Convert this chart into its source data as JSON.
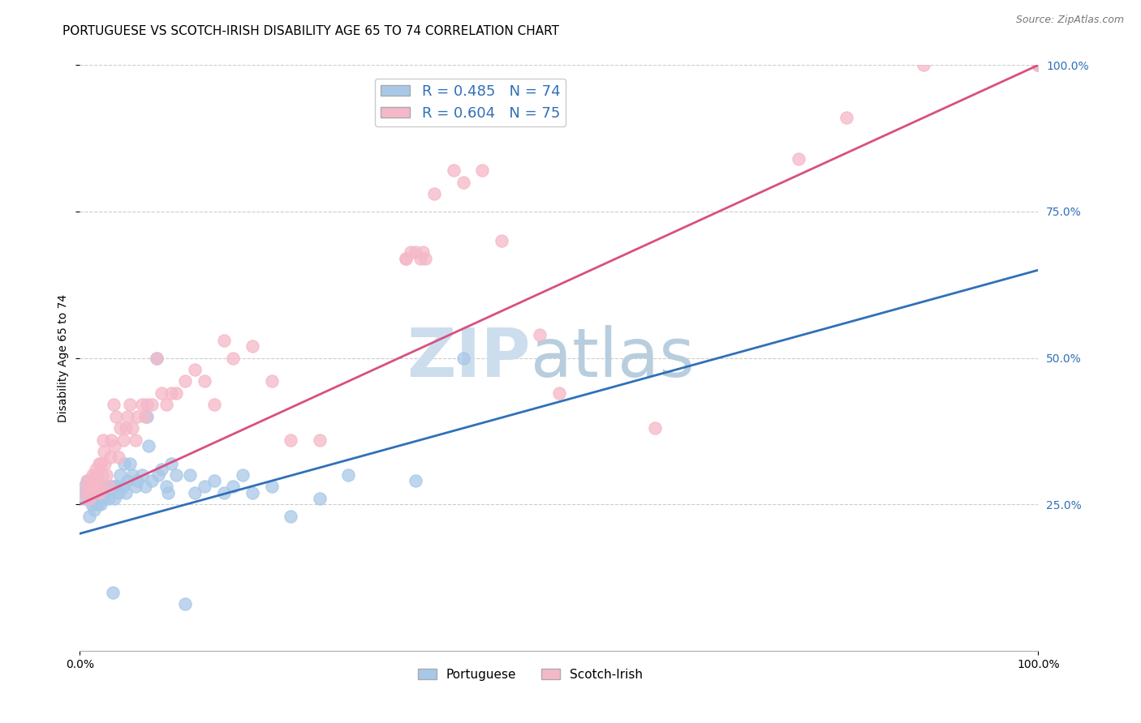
{
  "title": "PORTUGUESE VS SCOTCH-IRISH DISABILITY AGE 65 TO 74 CORRELATION CHART",
  "source": "Source: ZipAtlas.com",
  "ylabel": "Disability Age 65 to 74",
  "xlim": [
    0,
    1
  ],
  "ylim": [
    0,
    1
  ],
  "blue_color": "#a8c8e8",
  "pink_color": "#f5b8c8",
  "blue_line_color": "#3070b8",
  "pink_line_color": "#d85080",
  "blue_R": 0.485,
  "blue_N": 74,
  "pink_R": 0.604,
  "pink_N": 75,
  "blue_intercept": 0.2,
  "blue_slope": 0.45,
  "pink_intercept": 0.25,
  "pink_slope": 0.75,
  "background_color": "#ffffff",
  "grid_color": "#cccccc",
  "title_fontsize": 11,
  "axis_label_fontsize": 10,
  "tick_fontsize": 10,
  "legend_fontsize": 13,
  "watermark_fontsize": 60,
  "watermark_color_zip": "#ccdded",
  "watermark_color_atlas": "#b8cede",
  "blue_points_x": [
    0.005,
    0.005,
    0.007,
    0.008,
    0.01,
    0.01,
    0.01,
    0.012,
    0.012,
    0.013,
    0.015,
    0.015,
    0.015,
    0.016,
    0.017,
    0.018,
    0.018,
    0.019,
    0.02,
    0.02,
    0.021,
    0.022,
    0.022,
    0.023,
    0.024,
    0.025,
    0.025,
    0.026,
    0.028,
    0.03,
    0.03,
    0.032,
    0.034,
    0.035,
    0.036,
    0.038,
    0.04,
    0.042,
    0.045,
    0.046,
    0.048,
    0.05,
    0.052,
    0.055,
    0.058,
    0.06,
    0.065,
    0.068,
    0.07,
    0.072,
    0.075,
    0.08,
    0.082,
    0.085,
    0.09,
    0.092,
    0.095,
    0.1,
    0.11,
    0.115,
    0.12,
    0.13,
    0.14,
    0.15,
    0.16,
    0.17,
    0.18,
    0.2,
    0.22,
    0.25,
    0.28,
    0.35,
    0.4,
    1.0
  ],
  "blue_points_y": [
    0.26,
    0.28,
    0.27,
    0.29,
    0.23,
    0.26,
    0.28,
    0.25,
    0.27,
    0.26,
    0.24,
    0.26,
    0.27,
    0.27,
    0.25,
    0.27,
    0.28,
    0.25,
    0.26,
    0.28,
    0.27,
    0.25,
    0.27,
    0.26,
    0.27,
    0.26,
    0.28,
    0.28,
    0.27,
    0.26,
    0.28,
    0.28,
    0.1,
    0.28,
    0.26,
    0.28,
    0.27,
    0.3,
    0.28,
    0.32,
    0.27,
    0.29,
    0.32,
    0.3,
    0.28,
    0.29,
    0.3,
    0.28,
    0.4,
    0.35,
    0.29,
    0.5,
    0.3,
    0.31,
    0.28,
    0.27,
    0.32,
    0.3,
    0.08,
    0.3,
    0.27,
    0.28,
    0.29,
    0.27,
    0.28,
    0.3,
    0.27,
    0.28,
    0.23,
    0.26,
    0.3,
    0.29,
    0.5,
    1.0
  ],
  "pink_points_x": [
    0.005,
    0.007,
    0.008,
    0.01,
    0.01,
    0.012,
    0.013,
    0.015,
    0.015,
    0.016,
    0.017,
    0.018,
    0.018,
    0.02,
    0.02,
    0.021,
    0.022,
    0.023,
    0.024,
    0.025,
    0.026,
    0.028,
    0.03,
    0.032,
    0.033,
    0.035,
    0.036,
    0.038,
    0.04,
    0.042,
    0.045,
    0.048,
    0.05,
    0.052,
    0.055,
    0.058,
    0.06,
    0.065,
    0.068,
    0.07,
    0.075,
    0.08,
    0.085,
    0.09,
    0.095,
    0.1,
    0.11,
    0.12,
    0.13,
    0.14,
    0.15,
    0.16,
    0.18,
    0.2,
    0.22,
    0.25,
    0.34,
    0.34,
    0.345,
    0.35,
    0.355,
    0.358,
    0.36,
    0.37,
    0.39,
    0.4,
    0.42,
    0.44,
    0.48,
    0.5,
    0.6,
    0.75,
    0.8,
    0.88,
    1.0
  ],
  "pink_points_y": [
    0.27,
    0.29,
    0.28,
    0.26,
    0.28,
    0.27,
    0.3,
    0.28,
    0.29,
    0.3,
    0.31,
    0.28,
    0.3,
    0.27,
    0.32,
    0.28,
    0.32,
    0.3,
    0.36,
    0.34,
    0.32,
    0.3,
    0.28,
    0.33,
    0.36,
    0.42,
    0.35,
    0.4,
    0.33,
    0.38,
    0.36,
    0.38,
    0.4,
    0.42,
    0.38,
    0.36,
    0.4,
    0.42,
    0.4,
    0.42,
    0.42,
    0.5,
    0.44,
    0.42,
    0.44,
    0.44,
    0.46,
    0.48,
    0.46,
    0.42,
    0.53,
    0.5,
    0.52,
    0.46,
    0.36,
    0.36,
    0.67,
    0.67,
    0.68,
    0.68,
    0.67,
    0.68,
    0.67,
    0.78,
    0.82,
    0.8,
    0.82,
    0.7,
    0.54,
    0.44,
    0.38,
    0.84,
    0.91,
    1.0,
    1.0
  ]
}
